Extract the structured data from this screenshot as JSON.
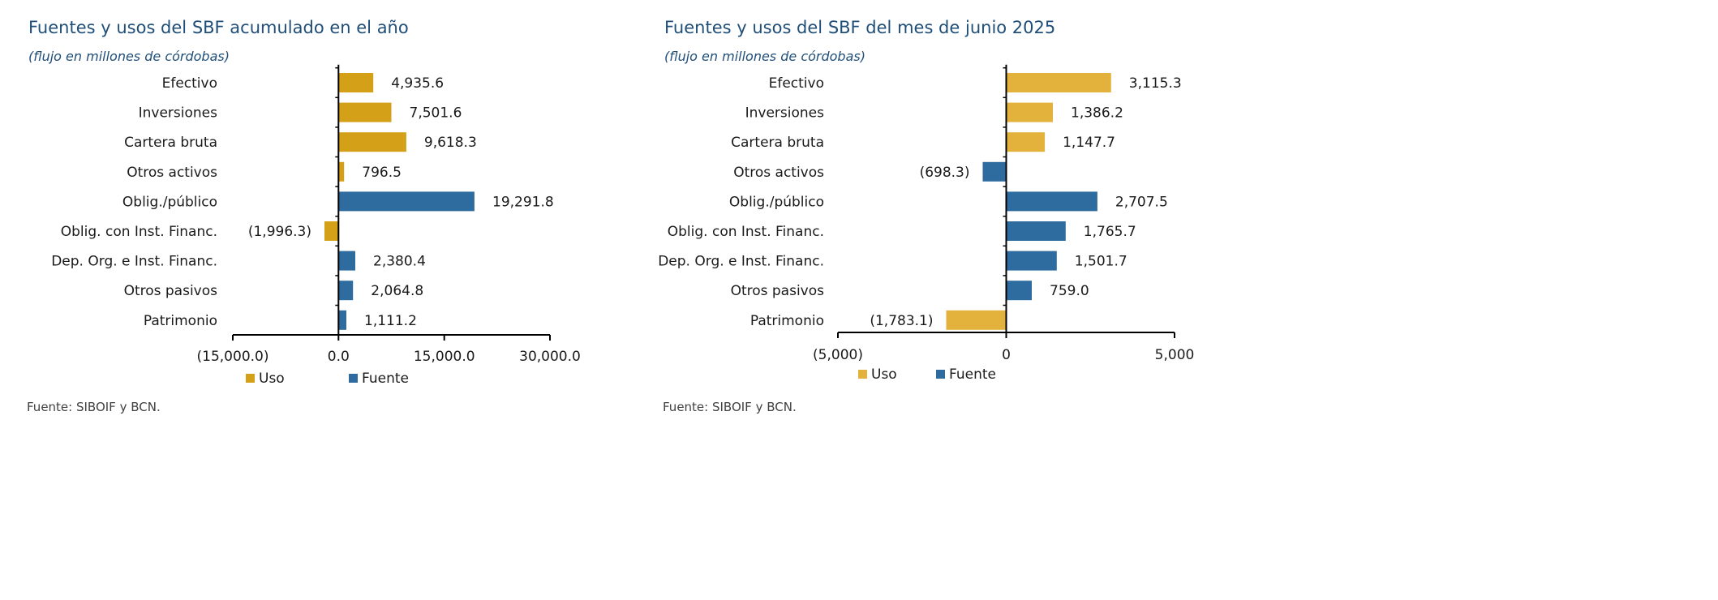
{
  "chart_data": [
    {
      "type": "bar",
      "orientation": "horizontal",
      "title": "Fuentes y usos del SBF acumulado en el año",
      "subtitle": "(flujo en millones de córdobas)",
      "source": "Fuente: SIBOIF y BCN.",
      "categories": [
        "Efectivo",
        "Inversiones",
        "Cartera bruta",
        "Otros activos",
        "Oblig./público",
        "Oblig. con Inst. Financ.",
        "Dep. Org. e Inst. Financ.",
        "Otros pasivos",
        "Patrimonio"
      ],
      "values": [
        4935.6,
        7501.6,
        9618.3,
        796.5,
        19291.8,
        -1996.3,
        2380.4,
        2064.8,
        1111.2
      ],
      "value_labels": [
        "4,935.6",
        "7,501.6",
        "9,618.3",
        "796.5",
        "19,291.8",
        "(1,996.3)",
        "2,380.4",
        "2,064.8",
        "1,111.2"
      ],
      "groups": [
        "Uso",
        "Uso",
        "Uso",
        "Uso",
        "Fuente",
        "Uso",
        "Fuente",
        "Fuente",
        "Fuente"
      ],
      "xlim": [
        -15000,
        30000
      ],
      "xticks": [
        -15000,
        0,
        15000,
        30000
      ],
      "xtick_labels": [
        "(15,000.0)",
        "0.0",
        "15,000.0",
        "30,000.0"
      ],
      "legend": [
        {
          "name": "Uso",
          "color": "#d4a017"
        },
        {
          "name": "Fuente",
          "color": "#2e6b9e"
        }
      ],
      "legend_position": "bottom",
      "grid": false
    },
    {
      "type": "bar",
      "orientation": "horizontal",
      "title": "Fuentes y usos del SBF del mes de junio 2025",
      "subtitle": "(flujo en millones de córdobas)",
      "source": "Fuente: SIBOIF y BCN.",
      "categories": [
        "Efectivo",
        "Inversiones",
        "Cartera bruta",
        "Otros activos",
        "Oblig./público",
        "Oblig. con Inst. Financ.",
        "Dep. Org. e Inst. Financ.",
        "Otros pasivos",
        "Patrimonio"
      ],
      "values": [
        3115.3,
        1386.2,
        1147.7,
        -698.3,
        2707.5,
        1765.7,
        1501.7,
        759.0,
        -1783.1
      ],
      "value_labels": [
        "3,115.3",
        "1,386.2",
        "1,147.7",
        "(698.3)",
        "2,707.5",
        "1,765.7",
        "1,501.7",
        "759.0",
        "(1,783.1)"
      ],
      "groups": [
        "Uso",
        "Uso",
        "Uso",
        "Fuente",
        "Fuente",
        "Fuente",
        "Fuente",
        "Fuente",
        "Uso"
      ],
      "xlim": [
        -5000,
        5000
      ],
      "xticks": [
        -5000,
        0,
        5000
      ],
      "xtick_labels": [
        "(5,000)",
        "0",
        "5,000"
      ],
      "legend": [
        {
          "name": "Uso",
          "color": "#e3b23c"
        },
        {
          "name": "Fuente",
          "color": "#2e6b9e"
        }
      ],
      "legend_position": "bottom",
      "grid": false
    }
  ]
}
